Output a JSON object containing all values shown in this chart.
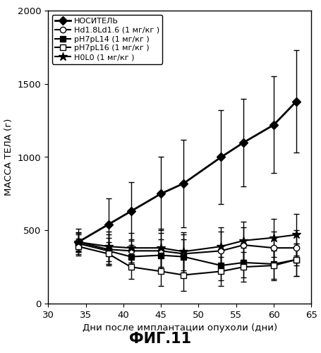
{
  "x": [
    34,
    38,
    41,
    45,
    48,
    53,
    56,
    60,
    63
  ],
  "series": {
    "НОСИТЕЛЬ": {
      "y": [
        420,
        540,
        630,
        750,
        820,
        1000,
        1100,
        1220,
        1380
      ],
      "yerr": [
        90,
        180,
        200,
        250,
        300,
        320,
        300,
        330,
        350
      ]
    },
    "Hd1.8Ld1.6 (1 мг/кг )": {
      "y": [
        420,
        370,
        360,
        360,
        340,
        360,
        400,
        380,
        380
      ],
      "yerr": [
        60,
        100,
        80,
        120,
        130,
        130,
        120,
        110,
        120
      ]
    },
    "pH7pL14 (1 мг/кг )": {
      "y": [
        410,
        360,
        320,
        330,
        320,
        260,
        280,
        270,
        300
      ],
      "yerr": [
        60,
        90,
        80,
        110,
        120,
        100,
        100,
        100,
        110
      ]
    },
    "pH7pL16 (1 мг/кг )": {
      "y": [
        390,
        340,
        250,
        220,
        195,
        220,
        250,
        260,
        300
      ],
      "yerr": [
        55,
        80,
        80,
        100,
        110,
        100,
        100,
        100,
        110
      ]
    },
    "H0L0 (1 мг/кг )": {
      "y": [
        420,
        390,
        380,
        380,
        355,
        390,
        430,
        450,
        470
      ],
      "yerr": [
        65,
        100,
        100,
        130,
        130,
        130,
        130,
        130,
        140
      ]
    }
  },
  "legend_labels": [
    "НОСИТЕЛЬ",
    "Hd1.8Ld1.6 (1 мг/кг )",
    "pH7pL14 (1 мг/кг )",
    "pH7pL16 (1 мг/кг )",
    "H0L0 (1 мг/кг )"
  ],
  "xlim": [
    30,
    65
  ],
  "ylim": [
    0,
    2000
  ],
  "xticks": [
    30,
    35,
    40,
    45,
    50,
    55,
    60,
    65
  ],
  "yticks": [
    0,
    500,
    1000,
    1500,
    2000
  ],
  "xlabel": "Дни после имплантации опухоли (дни)",
  "ylabel": "МАССА ТЕЛА (г)",
  "figcaption": "ФИГ.11",
  "background_color": "#ffffff"
}
